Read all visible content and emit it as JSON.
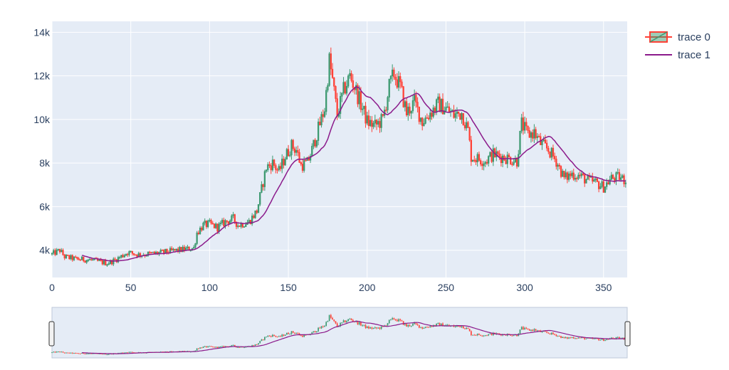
{
  "chart_data": {
    "type": "candlestick",
    "title": "",
    "xlabel": "",
    "ylabel": "",
    "xlim": [
      0,
      365
    ],
    "ylim": [
      2750,
      14500
    ],
    "x_ticks": [
      0,
      50,
      100,
      150,
      200,
      250,
      300,
      350
    ],
    "x_tick_labels": [
      "0",
      "50",
      "100",
      "150",
      "200",
      "250",
      "300",
      "350"
    ],
    "y_ticks": [
      4000,
      6000,
      8000,
      10000,
      12000,
      14000
    ],
    "y_tick_labels": [
      "4k",
      "6k",
      "8k",
      "10k",
      "12k",
      "14k"
    ],
    "grid": true,
    "legend_position": "top-right",
    "range_slider": true,
    "colors": {
      "increasing": "#3d9970",
      "decreasing": "#ff4136",
      "line": "#8b1a8b",
      "plot_bg": "#e5ecf6",
      "grid": "#ffffff",
      "axis_text": "#2a3f5f"
    },
    "series": [
      {
        "name": "trace 0",
        "type": "candlestick",
        "close_keyframes": [
          [
            0,
            3820
          ],
          [
            5,
            4000
          ],
          [
            8,
            3700
          ],
          [
            15,
            3600
          ],
          [
            25,
            3550
          ],
          [
            35,
            3400
          ],
          [
            40,
            3550
          ],
          [
            48,
            3900
          ],
          [
            55,
            3800
          ],
          [
            65,
            3850
          ],
          [
            75,
            3950
          ],
          [
            85,
            4050
          ],
          [
            90,
            4100
          ],
          [
            92,
            4800
          ],
          [
            96,
            5150
          ],
          [
            100,
            5200
          ],
          [
            105,
            5050
          ],
          [
            110,
            5300
          ],
          [
            115,
            5450
          ],
          [
            118,
            5150
          ],
          [
            125,
            5300
          ],
          [
            130,
            5800
          ],
          [
            133,
            6800
          ],
          [
            136,
            7800
          ],
          [
            140,
            8000
          ],
          [
            144,
            7600
          ],
          [
            148,
            8300
          ],
          [
            152,
            8800
          ],
          [
            155,
            8600
          ],
          [
            158,
            7900
          ],
          [
            162,
            8000
          ],
          [
            165,
            8600
          ],
          [
            170,
            9800
          ],
          [
            173,
            10500
          ],
          [
            176,
            12700
          ],
          [
            178,
            11800
          ],
          [
            181,
            10200
          ],
          [
            185,
            11300
          ],
          [
            189,
            12000
          ],
          [
            192,
            11500
          ],
          [
            196,
            10700
          ],
          [
            200,
            9900
          ],
          [
            205,
            9700
          ],
          [
            210,
            10000
          ],
          [
            214,
            11500
          ],
          [
            217,
            12100
          ],
          [
            221,
            11500
          ],
          [
            225,
            10300
          ],
          [
            230,
            10800
          ],
          [
            235,
            9900
          ],
          [
            240,
            10300
          ],
          [
            245,
            10700
          ],
          [
            250,
            10500
          ],
          [
            255,
            10200
          ],
          [
            260,
            10300
          ],
          [
            264,
            9500
          ],
          [
            266,
            8300
          ],
          [
            270,
            8200
          ],
          [
            275,
            8100
          ],
          [
            280,
            8400
          ],
          [
            285,
            8300
          ],
          [
            290,
            8200
          ],
          [
            295,
            8100
          ],
          [
            298,
            9800
          ],
          [
            302,
            9300
          ],
          [
            306,
            9400
          ],
          [
            310,
            8900
          ],
          [
            315,
            8600
          ],
          [
            320,
            8100
          ],
          [
            325,
            7300
          ],
          [
            330,
            7500
          ],
          [
            335,
            7400
          ],
          [
            340,
            7200
          ],
          [
            345,
            7100
          ],
          [
            350,
            6900
          ],
          [
            355,
            7300
          ],
          [
            360,
            7350
          ],
          [
            364,
            7200
          ]
        ],
        "volatility": 0.045,
        "points": 365
      },
      {
        "name": "trace 1",
        "type": "line",
        "moving_average_window": 20,
        "source": "trace 0 close"
      }
    ]
  },
  "legend": {
    "items": [
      {
        "label": "trace 0",
        "symbol": "candlestick"
      },
      {
        "label": "trace 1",
        "symbol": "line"
      }
    ]
  }
}
